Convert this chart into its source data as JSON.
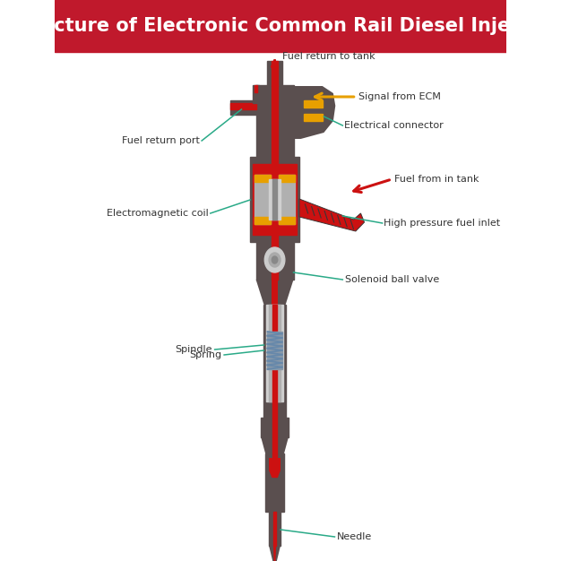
{
  "title": "Structure of Electronic Common Rail Diesel Injector",
  "title_bg": "#c0192c",
  "title_color": "#ffffff",
  "bg_color": "#ffffff",
  "injector_color": "#5a4f4f",
  "injector_dark": "#3d3535",
  "red_color": "#cc1111",
  "silver_color": "#b0b0b0",
  "silver_light": "#d0d0d0",
  "silver_dark": "#888888",
  "yellow_color": "#e8a000",
  "spring_color": "#6688aa",
  "label_color": "#333333",
  "line_color": "#2aaa88",
  "labels": {
    "fuel_return": "Fuel return to tank",
    "signal_ecm": "Signal from ECM",
    "electrical_conn": "Electrical connector",
    "fuel_return_port": "Fuel return port",
    "fuel_from_tank": "Fuel from in tank",
    "high_pressure": "High pressure fuel inlet",
    "em_coil": "Electromagnetic coil",
    "solenoid_ball": "Solenoid ball valve",
    "spindle": "Spindle",
    "spring": "Spring",
    "needle": "Needle"
  }
}
